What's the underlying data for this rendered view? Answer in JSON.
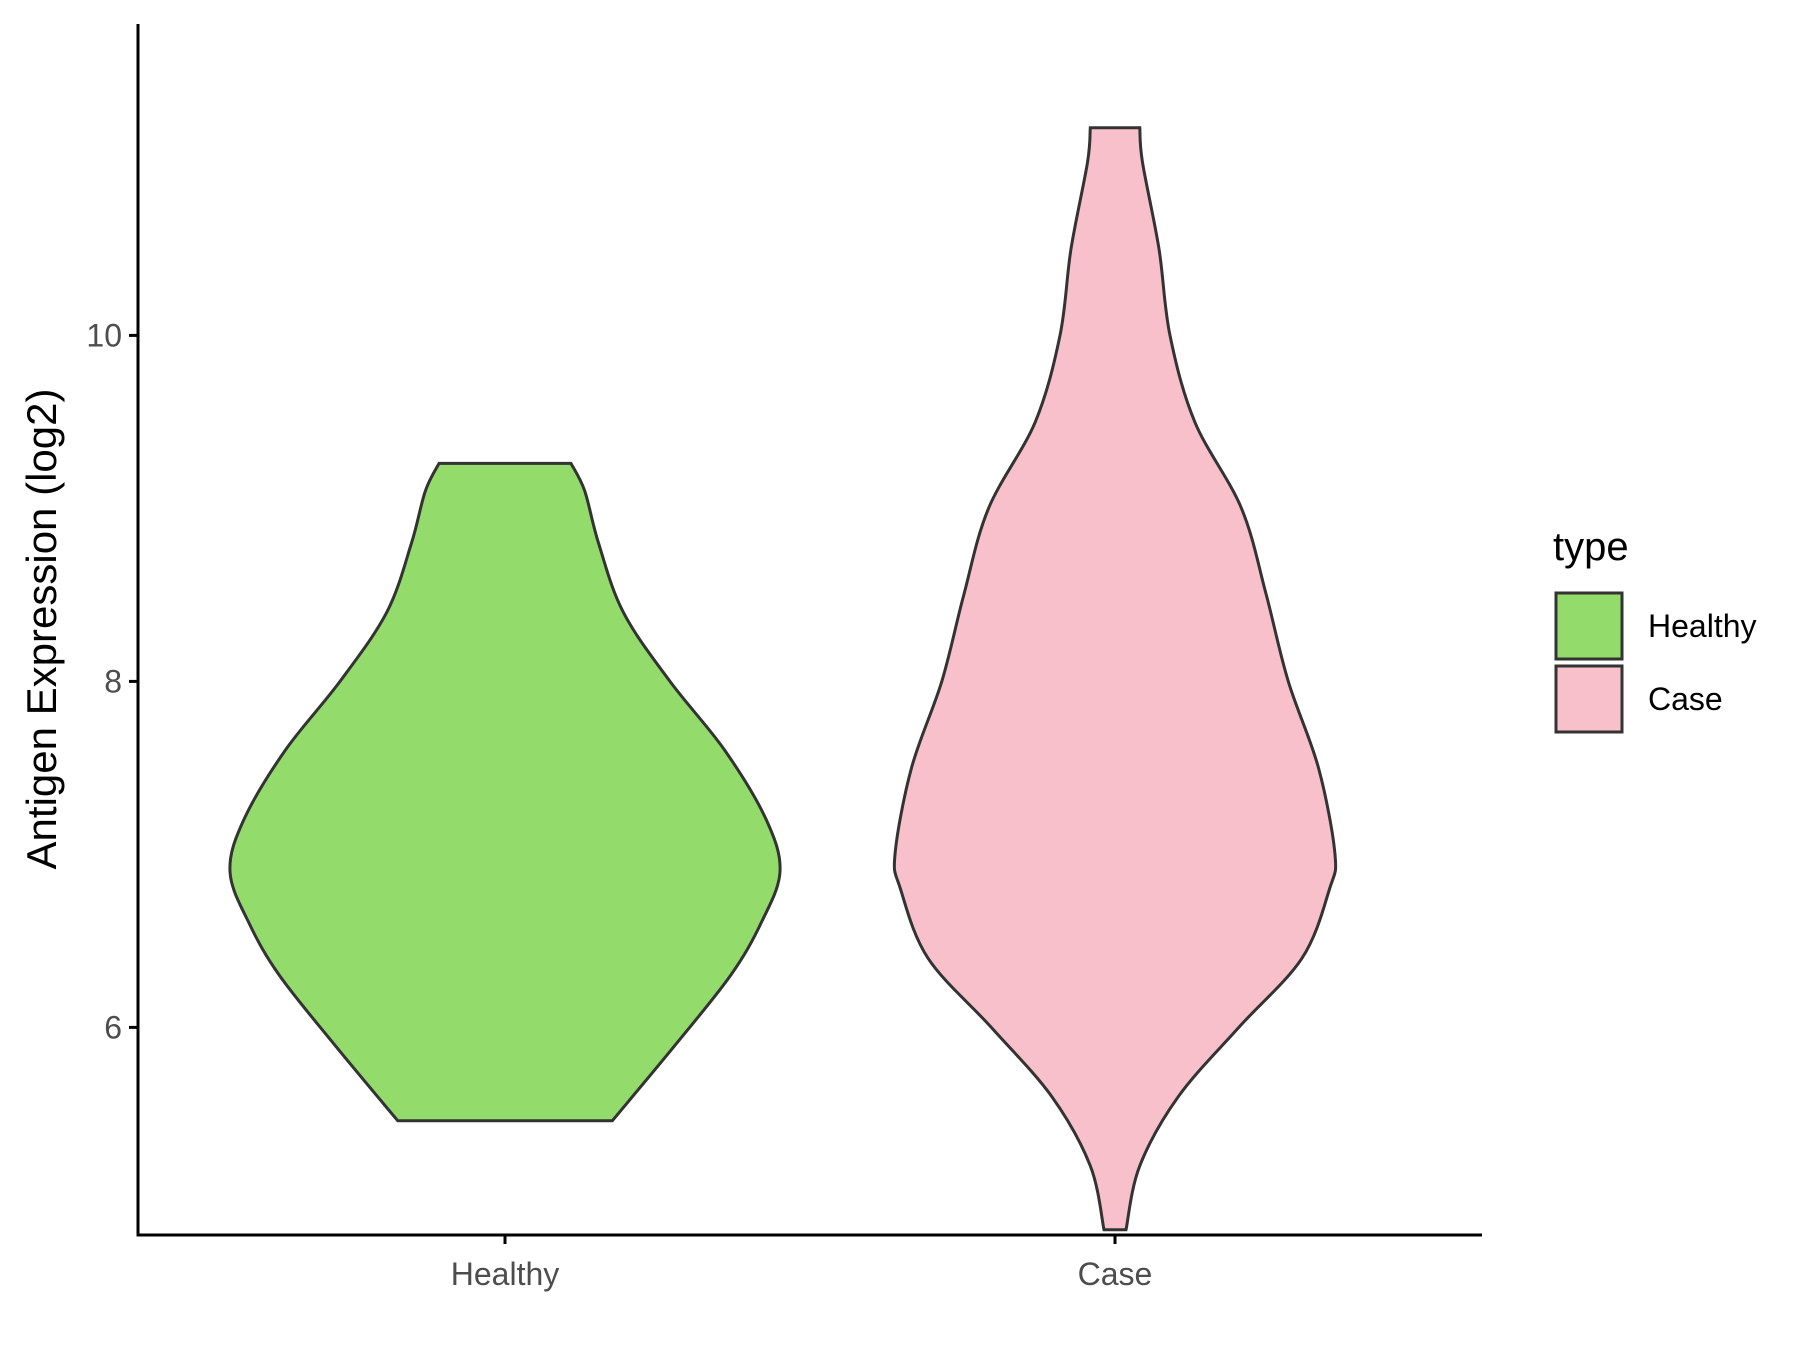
{
  "chart_data": {
    "type": "violin",
    "ylabel": "Antigen Expression (log2)",
    "xlabel": "",
    "categories": [
      "Healthy",
      "Case"
    ],
    "ylim": [
      4.8,
      11.8
    ],
    "yticks": [
      6,
      8,
      10
    ],
    "grid": false,
    "legend": {
      "title": "type",
      "placement": "right",
      "entries": [
        {
          "label": "Healthy",
          "color": "#93DB6B"
        },
        {
          "label": "Case",
          "color": "#F7C0CB"
        }
      ]
    },
    "series": [
      {
        "category": "Healthy",
        "color": "#93DB6B",
        "min": 5.46,
        "max": 9.26,
        "density_profile": [
          {
            "y": 5.46,
            "halfwidth": 0.39
          },
          {
            "y": 5.9,
            "halfwidth": 0.62
          },
          {
            "y": 6.3,
            "halfwidth": 0.82
          },
          {
            "y": 6.6,
            "halfwidth": 0.93
          },
          {
            "y": 6.9,
            "halfwidth": 1.0
          },
          {
            "y": 7.2,
            "halfwidth": 0.95
          },
          {
            "y": 7.6,
            "halfwidth": 0.8
          },
          {
            "y": 8.0,
            "halfwidth": 0.6
          },
          {
            "y": 8.4,
            "halfwidth": 0.43
          },
          {
            "y": 8.8,
            "halfwidth": 0.34
          },
          {
            "y": 9.1,
            "halfwidth": 0.29
          },
          {
            "y": 9.26,
            "halfwidth": 0.24
          }
        ]
      },
      {
        "category": "Case",
        "color": "#F7C0CB",
        "min": 4.83,
        "max": 11.2,
        "density_profile": [
          {
            "y": 4.83,
            "halfwidth": 0.04
          },
          {
            "y": 5.2,
            "halfwidth": 0.09
          },
          {
            "y": 5.6,
            "halfwidth": 0.23
          },
          {
            "y": 6.0,
            "halfwidth": 0.45
          },
          {
            "y": 6.4,
            "halfwidth": 0.68
          },
          {
            "y": 6.8,
            "halfwidth": 0.78
          },
          {
            "y": 7.0,
            "halfwidth": 0.8
          },
          {
            "y": 7.5,
            "halfwidth": 0.74
          },
          {
            "y": 8.0,
            "halfwidth": 0.63
          },
          {
            "y": 8.5,
            "halfwidth": 0.55
          },
          {
            "y": 9.0,
            "halfwidth": 0.46
          },
          {
            "y": 9.5,
            "halfwidth": 0.29
          },
          {
            "y": 10.0,
            "halfwidth": 0.2
          },
          {
            "y": 10.5,
            "halfwidth": 0.16
          },
          {
            "y": 11.0,
            "halfwidth": 0.1
          },
          {
            "y": 11.2,
            "halfwidth": 0.09
          }
        ]
      }
    ]
  }
}
